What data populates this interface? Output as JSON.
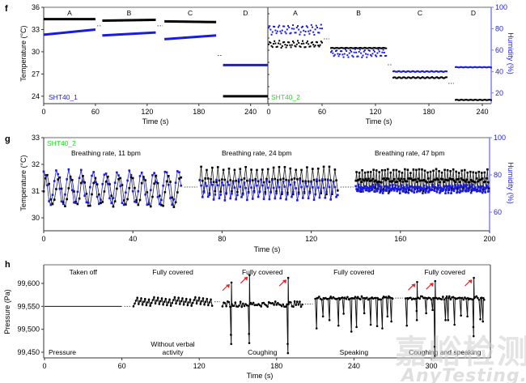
{
  "colors": {
    "black_series": "#000000",
    "blue_series": "#1a1ae6",
    "right_axis": "#7777ff",
    "sensor1_label": "#2222dd",
    "sensor2_label": "#22dd22",
    "arrow": "#ee2222"
  },
  "watermark": {
    "cn": "嘉峪检测网",
    "en": "AnyTesting.com"
  },
  "chart_data": [
    {
      "id": "f",
      "panel_letter": "f",
      "type": "scatter",
      "title": "",
      "subpanels": [
        {
          "sensor_label": "SHT40_1",
          "xlabel": "Time (s)",
          "xlim": [
            0,
            260
          ],
          "xticks": [
            0,
            60,
            120,
            180,
            240
          ],
          "xtick_labels": [
            "0",
            "60",
            "120",
            "180",
            "240"
          ],
          "segments": [
            {
              "label": "A",
              "t": [
                0,
                60
              ],
              "temp": [
                34.4,
                34.4
              ],
              "temp_line": [
                32.3,
                33.0
              ]
            },
            {
              "label": "B",
              "t": [
                68,
                130
              ],
              "temp": [
                34.2,
                34.3
              ],
              "temp_line": [
                32.2,
                32.6
              ]
            },
            {
              "label": "C",
              "t": [
                140,
                200
              ],
              "temp": [
                34.1,
                34.0
              ],
              "temp_line": [
                31.7,
                32.2
              ]
            },
            {
              "label": "D",
              "t": [
                208,
                260
              ],
              "temp": [
                24.0,
                24.0
              ],
              "temp_line": [
                28.2,
                28.2
              ]
            }
          ],
          "series_notes": "black = temperature (°C), blue = temperature trace of SHT40_1 (°C)"
        },
        {
          "sensor_label": "SHT40_2",
          "xlabel": "Time (s)",
          "xlim": [
            0,
            250
          ],
          "xticks": [
            0,
            60,
            120,
            180,
            240
          ],
          "xtick_labels": [
            "0",
            "60",
            "120",
            "180",
            "240"
          ],
          "segments": [
            {
              "label": "A",
              "t": [
                0,
                60
              ],
              "temp_mean": 31.0,
              "temp_amp": 0.5,
              "hum_mean": 79,
              "hum_amp": 5
            },
            {
              "label": "B",
              "t": [
                70,
                132
              ],
              "temp_mean": 30.5,
              "temp_amp": 0.05,
              "hum_mean": 57,
              "hum_amp": 4
            },
            {
              "label": "C",
              "t": [
                140,
                200
              ],
              "temp_mean": 26.5,
              "temp_amp": 0.1,
              "hum_mean": 40,
              "hum_amp": 0.5
            },
            {
              "label": "D",
              "t": [
                210,
                250
              ],
              "temp_mean": 23.5,
              "temp_amp": 0.05,
              "hum_mean": 44,
              "hum_amp": 0.3
            }
          ],
          "series_notes": "black = temperature (°C, left axis), blue = humidity (%, right axis)"
        }
      ],
      "ylabel": "Temperature (°C)",
      "ylim": [
        23,
        36
      ],
      "yticks": [
        24,
        27,
        30,
        33,
        36
      ],
      "ytick_labels": [
        "24",
        "27",
        "30",
        "33",
        "36"
      ],
      "ylabel_right": "Humidity (%)",
      "ylim_right": [
        10,
        100
      ],
      "yticks_right": [
        20,
        40,
        60,
        80,
        100
      ],
      "ytick_labels_right": [
        "20",
        "40",
        "60",
        "80",
        "100"
      ],
      "legend": "none",
      "grid": false
    },
    {
      "id": "g",
      "panel_letter": "g",
      "type": "line",
      "sensor_label": "SHT40_2",
      "xlabel": "Time (s)",
      "xlim": [
        0,
        200
      ],
      "xticks": [
        0,
        40,
        80,
        120,
        160,
        200
      ],
      "xtick_labels": [
        "0",
        "40",
        "80",
        "120",
        "160",
        "200"
      ],
      "ylabel": "Temperature (°C)",
      "ylim": [
        29.5,
        33
      ],
      "yticks": [
        30,
        31,
        32,
        33
      ],
      "ytick_labels": [
        "30",
        "31",
        "32",
        "33"
      ],
      "ylabel_right": "Humidity (%)",
      "ylim_right": [
        50,
        100
      ],
      "yticks_right": [
        60,
        80,
        100
      ],
      "ytick_labels_right": [
        "60",
        "80",
        "100"
      ],
      "annotations": [
        "Breathing rate, 11 bpm",
        "Breathing rate, 24 bpm",
        "Breathing rate, 47 bpm"
      ],
      "segments": [
        {
          "label": "Breathing rate, 11 bpm",
          "t": [
            0,
            62
          ],
          "bpm": 11,
          "temp_mean": 31.0,
          "temp_amp": 0.55,
          "hum_mean": 73,
          "hum_amp": 9
        },
        {
          "label": "Breathing rate, 24 bpm",
          "t": [
            70,
            132
          ],
          "bpm": 24,
          "temp_mean": 31.4,
          "temp_amp": 0.45,
          "hum_mean": 72,
          "hum_amp": 5
        },
        {
          "label": "Breathing rate, 47 bpm",
          "t": [
            140,
            200
          ],
          "bpm": 47,
          "temp_mean": 31.4,
          "temp_amp": 0.35,
          "hum_mean": 72.5,
          "hum_amp": 1.5
        }
      ],
      "legend": "none",
      "grid": false
    },
    {
      "id": "h",
      "panel_letter": "h",
      "type": "line",
      "series_label": "Pressure",
      "xlabel": "Time (s)",
      "xlim": [
        0,
        346
      ],
      "xticks": [
        0,
        60,
        120,
        180,
        240,
        300
      ],
      "xtick_labels": [
        "0",
        "60",
        "120",
        "180",
        "240",
        "300"
      ],
      "ylabel": "Pressure (Pa)",
      "ylim": [
        99440,
        99645
      ],
      "yticks": [
        99450,
        99500,
        99550,
        99600
      ],
      "ytick_labels": [
        "99,450",
        "99,500",
        "99,550",
        "99,600"
      ],
      "segments": [
        {
          "top_label": "Taken off",
          "bottom_label": "",
          "t": [
            0,
            60
          ],
          "baseline": 99550,
          "oscillation": 0,
          "spikes": []
        },
        {
          "top_label": "Fully covered",
          "bottom_label": "Without verbal activity",
          "t": [
            69,
            130
          ],
          "baseline": 99560,
          "oscillation": 10,
          "spikes": []
        },
        {
          "top_label": "Fully covered",
          "bottom_label": "Coughing",
          "t": [
            138,
            200
          ],
          "baseline": 99555,
          "oscillation": 6,
          "spikes": [
            {
              "t": 145,
              "high": 99602,
              "low": 99468
            },
            {
              "t": 159,
              "high": 99618,
              "low": 99470
            },
            {
              "t": 189,
              "high": 99612,
              "low": 99448
            }
          ]
        },
        {
          "top_label": "Fully covered",
          "bottom_label": "Speaking",
          "t": [
            210,
            270
          ],
          "baseline": 99568,
          "oscillation": 4,
          "dips": [
            {
              "t": 211,
              "low": 99502
            },
            {
              "t": 216,
              "low": 99528
            },
            {
              "t": 221,
              "low": 99520
            },
            {
              "t": 228,
              "low": 99508
            },
            {
              "t": 232,
              "low": 99534
            },
            {
              "t": 238,
              "low": 99495
            },
            {
              "t": 242,
              "low": 99505
            },
            {
              "t": 248,
              "low": 99535
            },
            {
              "t": 253,
              "low": 99510
            },
            {
              "t": 258,
              "low": 99507
            },
            {
              "t": 262,
              "low": 99502
            },
            {
              "t": 266,
              "low": 99528
            },
            {
              "t": 269,
              "low": 99517
            }
          ]
        },
        {
          "top_label": "Fully covered",
          "bottom_label": "Coughing and speaking",
          "t": [
            280,
            341
          ],
          "baseline": 99568,
          "oscillation": 4,
          "spikes": [
            {
              "t": 289,
              "high": 99603,
              "low": 99520
            },
            {
              "t": 303,
              "high": 99605,
              "low": 99442
            },
            {
              "t": 333,
              "high": 99612,
              "low": 99485
            }
          ],
          "dips": [
            {
              "t": 281,
              "low": 99508
            },
            {
              "t": 296,
              "low": 99535
            },
            {
              "t": 301,
              "low": 99542
            },
            {
              "t": 311,
              "low": 99520
            },
            {
              "t": 313,
              "low": 99520
            },
            {
              "t": 318,
              "low": 99510
            },
            {
              "t": 323,
              "low": 99530
            },
            {
              "t": 328,
              "low": 99528
            },
            {
              "t": 338,
              "low": 99522
            },
            {
              "t": 340,
              "low": 99517
            }
          ]
        }
      ],
      "arrows_at_t": [
        145,
        159,
        189,
        289,
        303,
        333
      ],
      "legend": "none",
      "grid": false
    }
  ]
}
